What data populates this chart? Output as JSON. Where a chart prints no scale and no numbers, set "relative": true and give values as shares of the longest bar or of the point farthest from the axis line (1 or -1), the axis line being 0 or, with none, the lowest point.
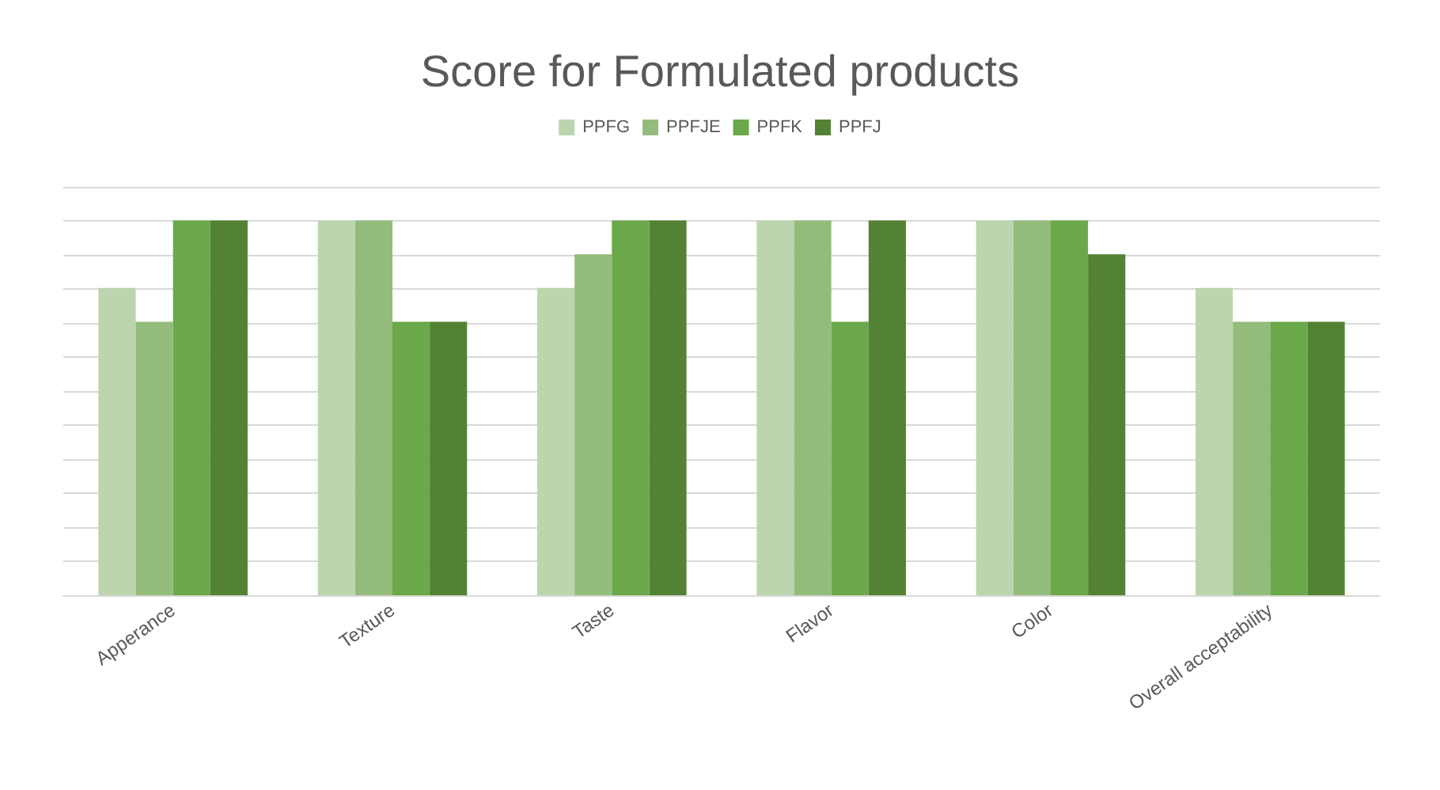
{
  "chart_data": {
    "type": "bar",
    "title": "Score for Formulated products",
    "relative": true,
    "categories": [
      "Apperance",
      "Texture",
      "Taste",
      "Flavor",
      "Color",
      "Overall acceptability"
    ],
    "series": [
      {
        "name": "PPFG",
        "color": "#bcd5ae",
        "values": [
          0.82,
          1,
          0.82,
          1,
          1,
          0.82
        ]
      },
      {
        "name": "PPFJE",
        "color": "#93bc7c",
        "values": [
          0.73,
          1,
          0.91,
          1,
          1,
          0.73
        ]
      },
      {
        "name": "PPFK",
        "color": "#6aa84a",
        "values": [
          1,
          0.73,
          1,
          0.73,
          1,
          0.73
        ]
      },
      {
        "name": "PPFJ",
        "color": "#548235",
        "values": [
          1,
          0.73,
          1,
          1,
          0.91,
          0.73
        ]
      }
    ],
    "grid": "y",
    "legend": "top"
  }
}
